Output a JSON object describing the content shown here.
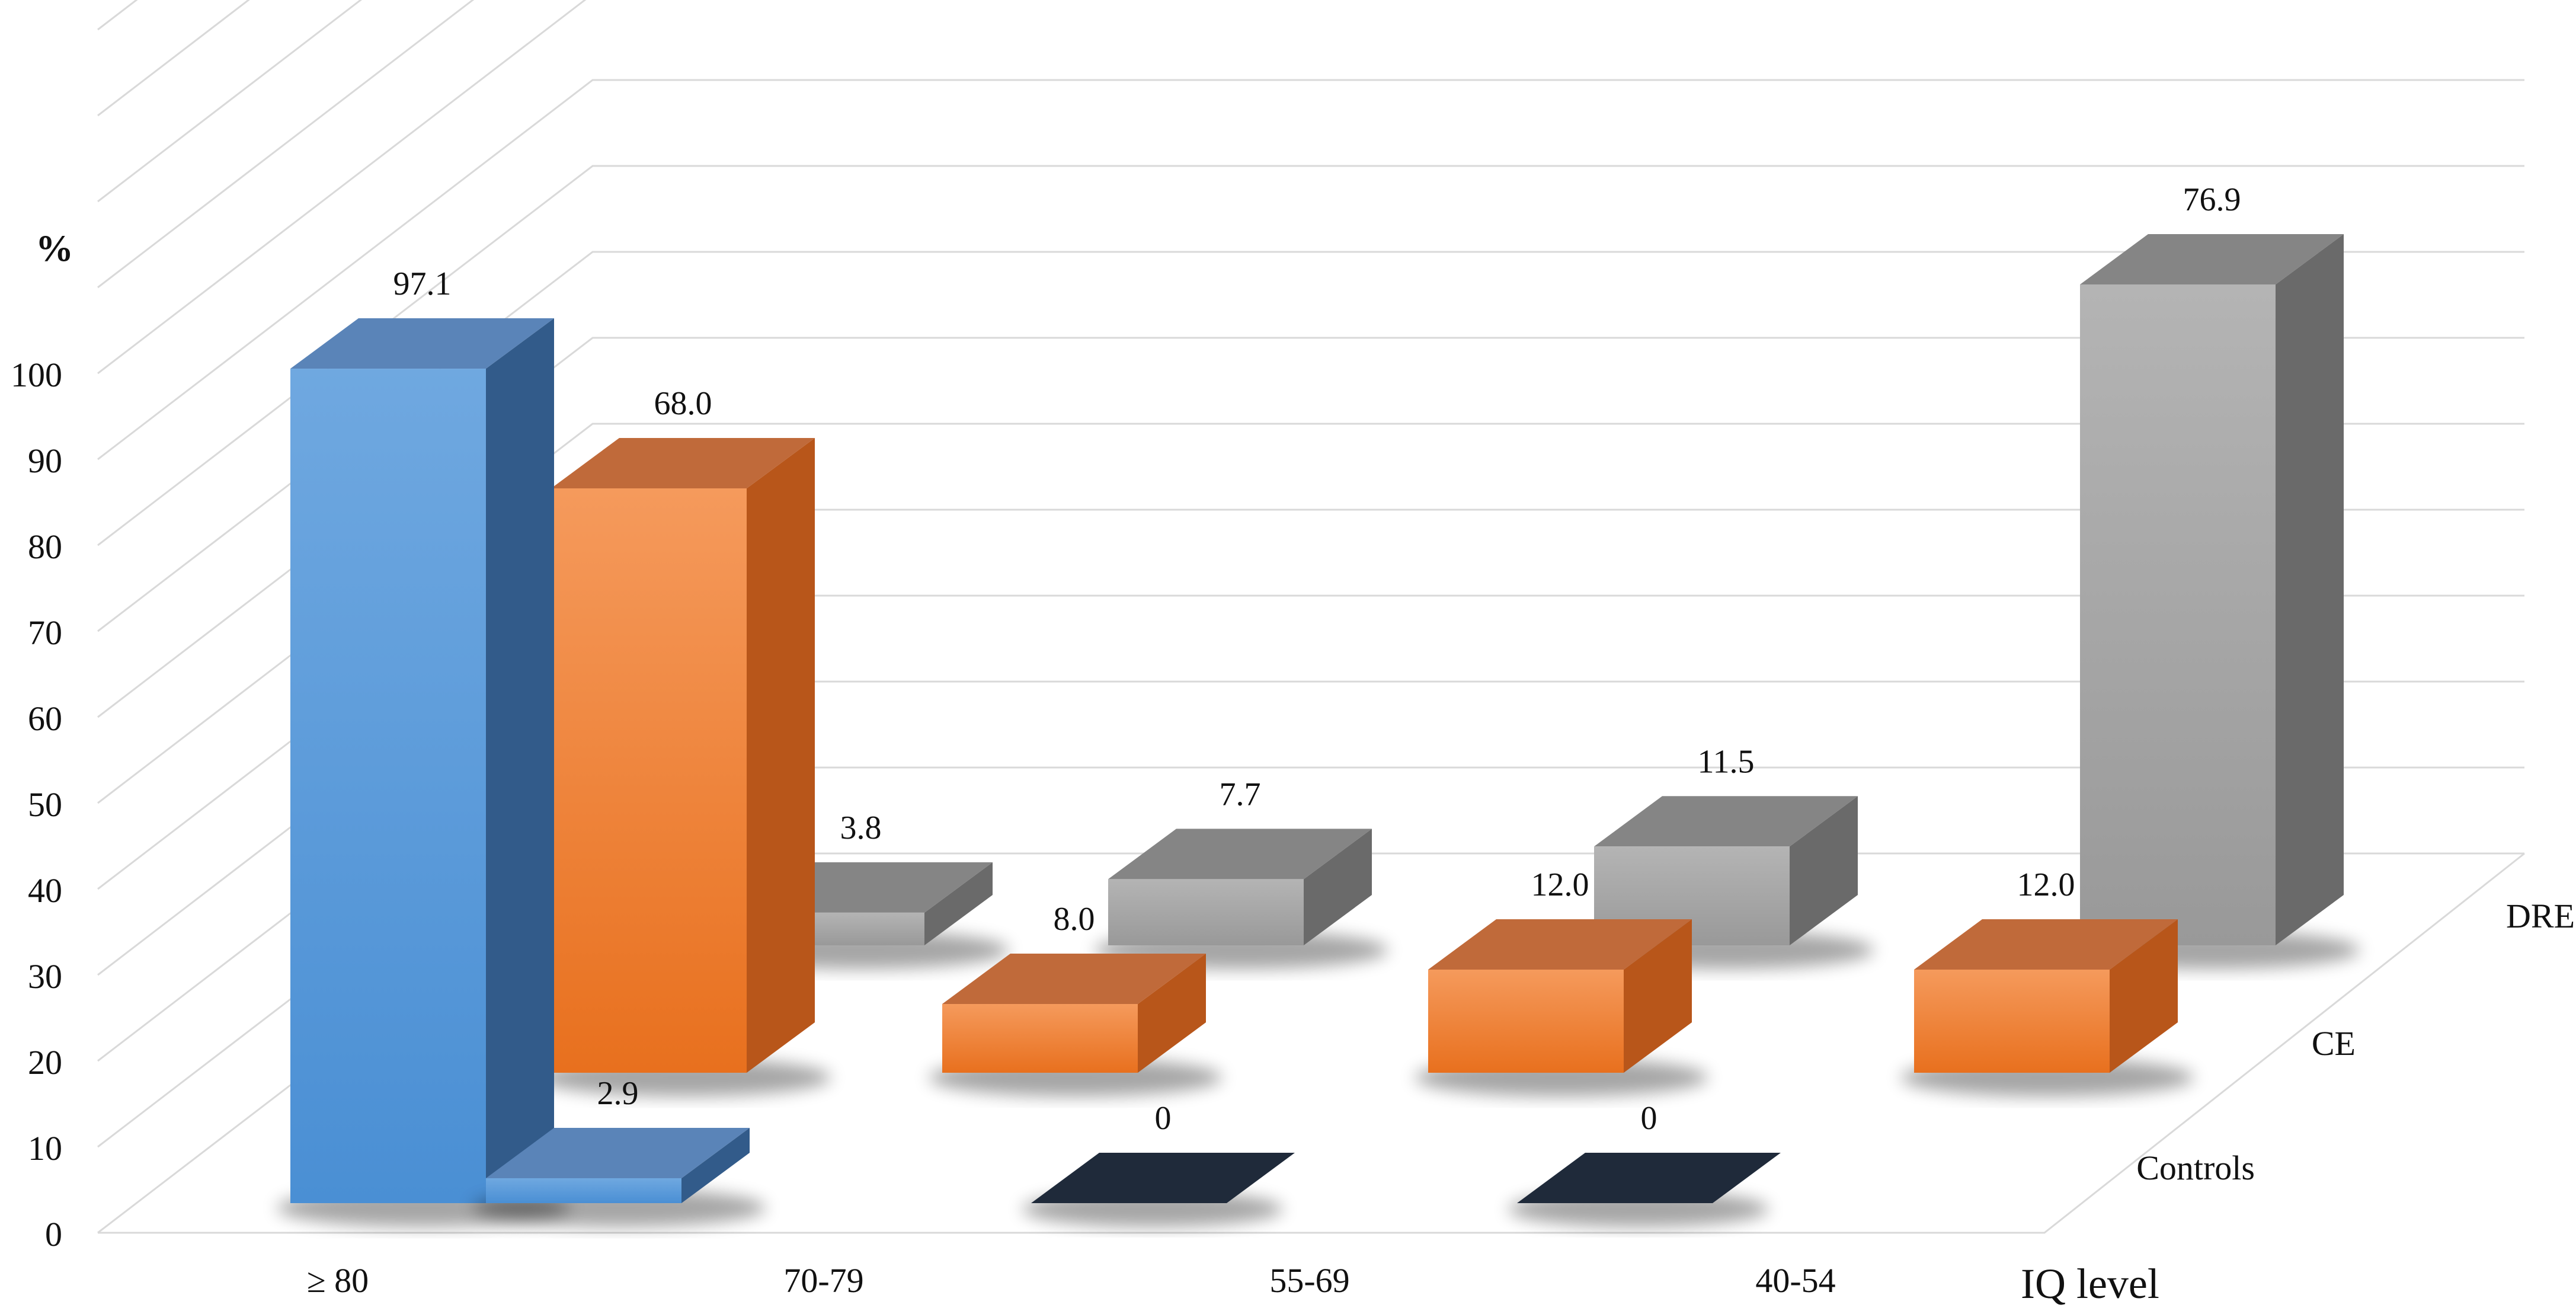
{
  "chart_data": {
    "type": "bar",
    "subtype": "3d-clustered-column",
    "title": "",
    "xlabel": "IQ level",
    "ylabel": "%",
    "ylim": [
      0,
      100
    ],
    "yticks": [
      0,
      10,
      20,
      30,
      40,
      50,
      60,
      70,
      80,
      90,
      100
    ],
    "categories": [
      "≥ 80",
      "70-79",
      "55-69",
      "40-54"
    ],
    "series": [
      {
        "name": "Controls",
        "values": [
          97.1,
          2.9,
          0,
          0
        ],
        "labels": [
          "97.1",
          "2.9",
          "0",
          "0"
        ]
      },
      {
        "name": "CE",
        "values": [
          68.0,
          8.0,
          12.0,
          12.0
        ],
        "labels": [
          "68.0",
          "8.0",
          "12.0",
          "12.0"
        ]
      },
      {
        "name": "DRE",
        "values": [
          3.8,
          7.7,
          11.5,
          76.9
        ],
        "labels": [
          "3.8",
          "7.7",
          "11.5",
          "76.9"
        ]
      }
    ],
    "grid": true,
    "legend": "depth-axis-right",
    "colors": {
      "Controls": "#5b9bd5",
      "CE": "#ed7d31",
      "DRE": "#a5a5a5",
      "zero_marker": "#1f2a3a",
      "grid": "#d9d9d9"
    }
  }
}
